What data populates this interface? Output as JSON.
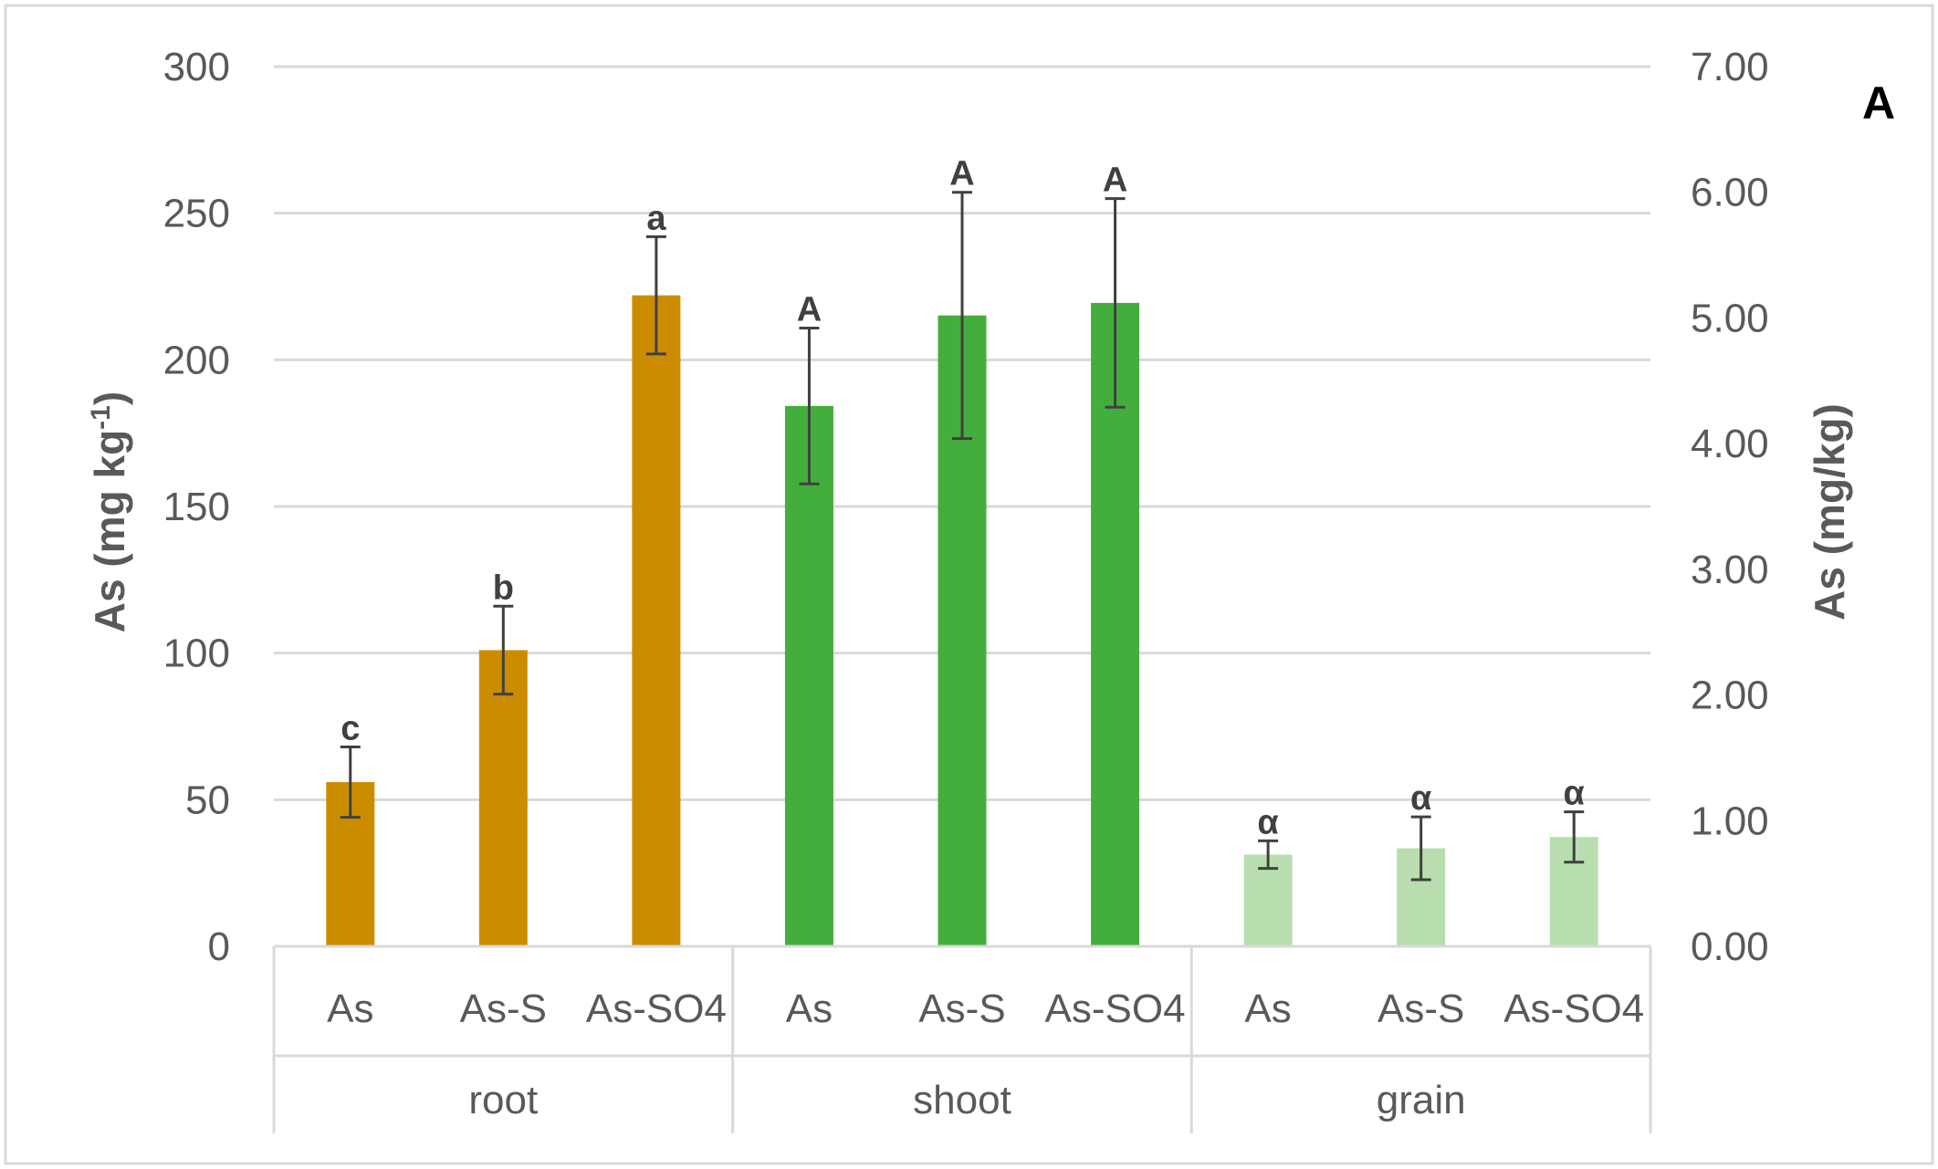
{
  "chart_data": {
    "type": "bar",
    "panel_label": "A",
    "y_left": {
      "label_main": "As (mg kg",
      "label_sup": "-1",
      "label_end": ")",
      "range": [
        0,
        300
      ],
      "ticks": [
        "0",
        "50",
        "100",
        "150",
        "200",
        "250",
        "300"
      ]
    },
    "y_right": {
      "label": "As (mg/kg)",
      "range": [
        0,
        7
      ],
      "ticks": [
        "0.00",
        "1.00",
        "2.00",
        "3.00",
        "4.00",
        "5.00",
        "6.00",
        "7.00"
      ]
    },
    "grid": true,
    "groups": [
      {
        "name": "root",
        "axis": "left",
        "color": "#CC8C00",
        "bars": [
          {
            "category": "As",
            "value": 56,
            "error": 12,
            "letter": "c"
          },
          {
            "category": "As-S",
            "value": 101,
            "error": 15,
            "letter": "b"
          },
          {
            "category": "As-SO4",
            "value": 222,
            "error": 20,
            "letter": "a"
          }
        ]
      },
      {
        "name": "shoot",
        "axis": "right",
        "color": "#44AE3C",
        "bars": [
          {
            "category": "As",
            "value": 4.3,
            "error": 0.62,
            "letter": "A"
          },
          {
            "category": "As-S",
            "value": 5.02,
            "error": 0.98,
            "letter": "A"
          },
          {
            "category": "As-SO4",
            "value": 5.12,
            "error": 0.83,
            "letter": "A"
          }
        ]
      },
      {
        "name": "grain",
        "axis": "right",
        "color": "#B8DEB0",
        "bars": [
          {
            "category": "As",
            "value": 0.73,
            "error": 0.11,
            "letter": "α"
          },
          {
            "category": "As-S",
            "value": 0.78,
            "error": 0.25,
            "letter": "α"
          },
          {
            "category": "As-SO4",
            "value": 0.87,
            "error": 0.2,
            "letter": "α"
          }
        ]
      }
    ]
  }
}
